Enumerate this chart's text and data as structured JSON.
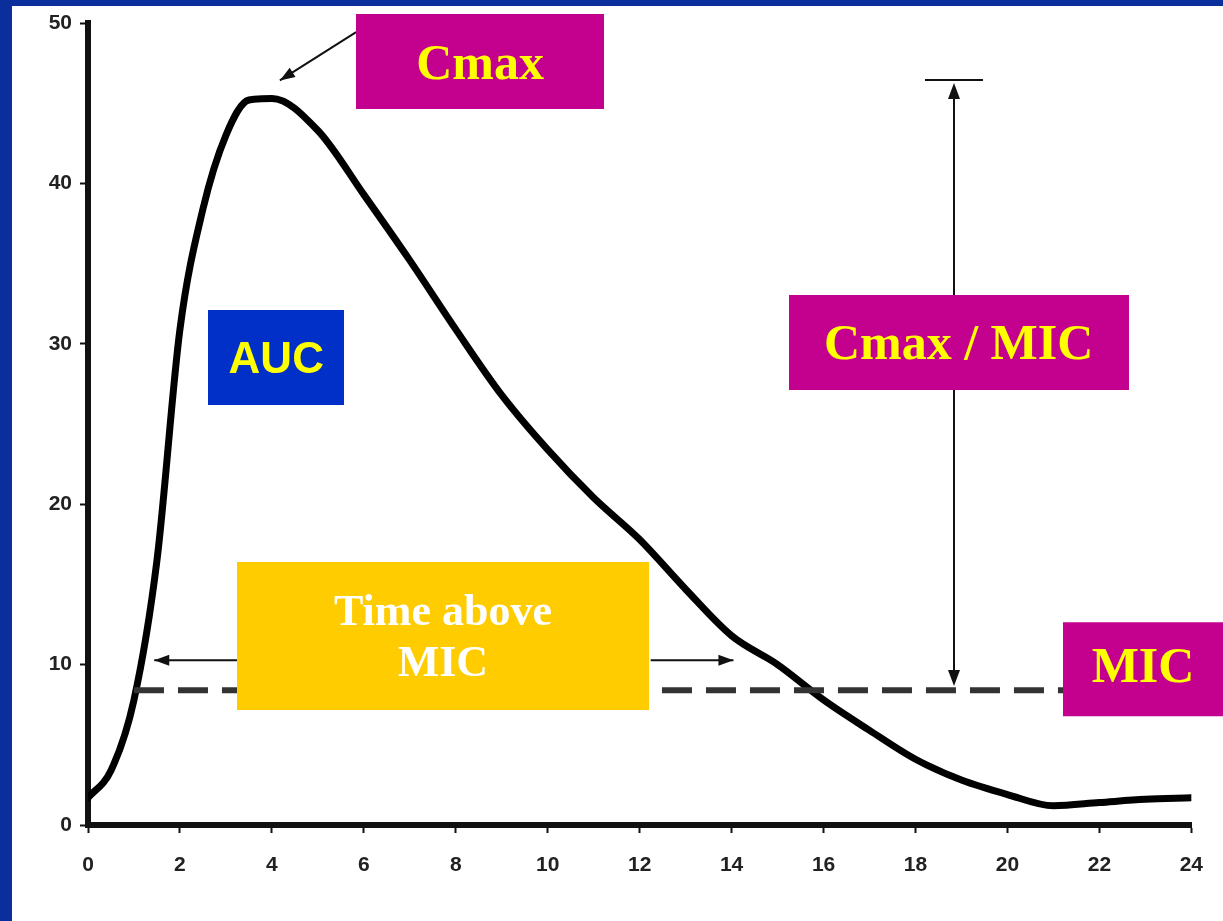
{
  "chart_data": {
    "type": "line",
    "x": [
      0,
      0.5,
      1,
      1.5,
      2,
      2.5,
      3,
      3.5,
      4,
      5,
      6,
      7,
      8,
      9,
      10,
      11,
      12,
      13,
      14,
      15,
      16,
      17,
      18,
      19,
      20,
      21,
      22,
      23,
      24
    ],
    "series": [
      {
        "color": "#000000",
        "values": [
          1.7,
          3.4,
          7.8,
          16.5,
          30.9,
          38.4,
          43,
          45.2,
          45.3,
          43.3,
          39.3,
          35.2,
          30.9,
          26.8,
          23.4,
          20.4,
          17.8,
          14.7,
          11.8,
          10,
          7.8,
          5.9,
          4.1,
          2.8,
          1.9,
          1.2,
          1.4,
          1.6,
          1.7
        ]
      }
    ],
    "xlim": [
      0,
      24
    ],
    "xticks": [
      0,
      2,
      4,
      6,
      8,
      10,
      12,
      14,
      16,
      18,
      20,
      22,
      24
    ],
    "ylim": [
      0,
      50
    ],
    "yticks": [
      0,
      10,
      20,
      30,
      40,
      50
    ],
    "grid": false,
    "legend": false,
    "marker": "none",
    "line_style": "solid",
    "ref_lines": [
      {
        "axis": "y",
        "value": 8.4,
        "label": "MIC",
        "color": "#333333",
        "line_style": "dashed"
      }
    ],
    "annotations": [
      {
        "text": "Cmax",
        "x": 4,
        "y": 45.3
      },
      "AUC",
      "Cmax / MIC",
      "Time above MIC"
    ]
  }
}
